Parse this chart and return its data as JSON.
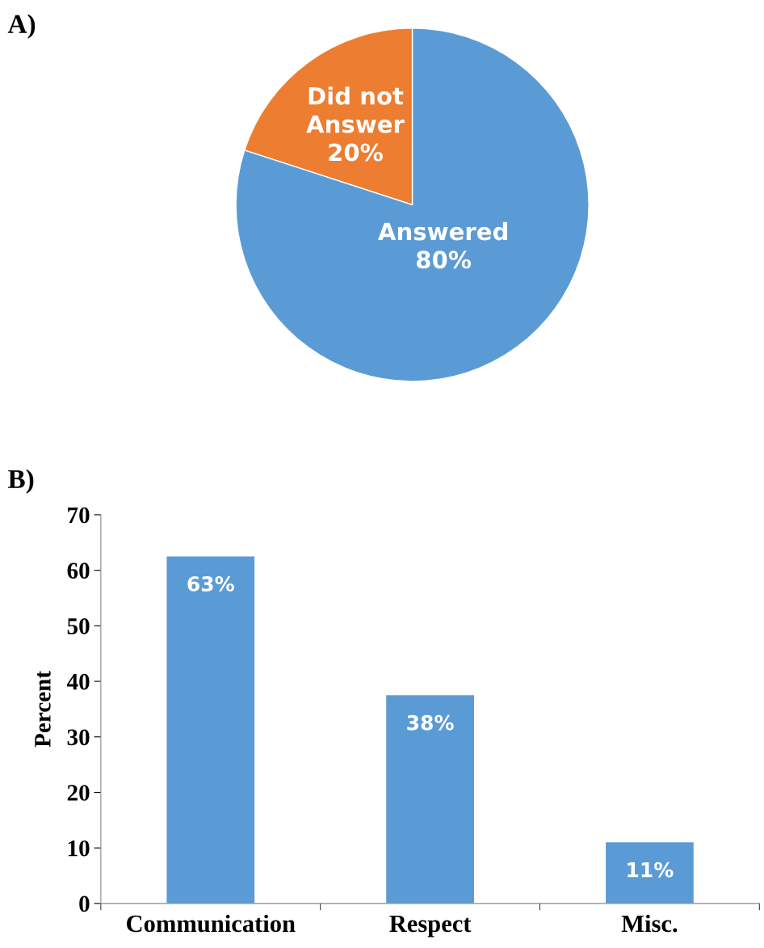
{
  "chart_data": [
    {
      "type": "pie",
      "annotations": [
        "A)"
      ],
      "categories": [
        "Did not\nAnswer",
        "Answered"
      ],
      "values": [
        20,
        80
      ],
      "colors": [
        "#ed7d31",
        "#5b9bd5"
      ],
      "value_labels": [
        "20%",
        "80%"
      ],
      "legend": false
    },
    {
      "type": "bar",
      "annotations": [
        "B)"
      ],
      "ylabel": "Percent",
      "categories": [
        "Communication",
        "Respect",
        "Misc."
      ],
      "values": [
        62.5,
        37.5,
        11
      ],
      "color": "#5b9bd5",
      "value_labels": [
        "63%",
        "38%",
        "11%"
      ],
      "ylim": [
        0,
        70
      ],
      "yticks": [
        0,
        10,
        20,
        30,
        40,
        50,
        60,
        70
      ],
      "grid": false,
      "legend": false
    }
  ]
}
